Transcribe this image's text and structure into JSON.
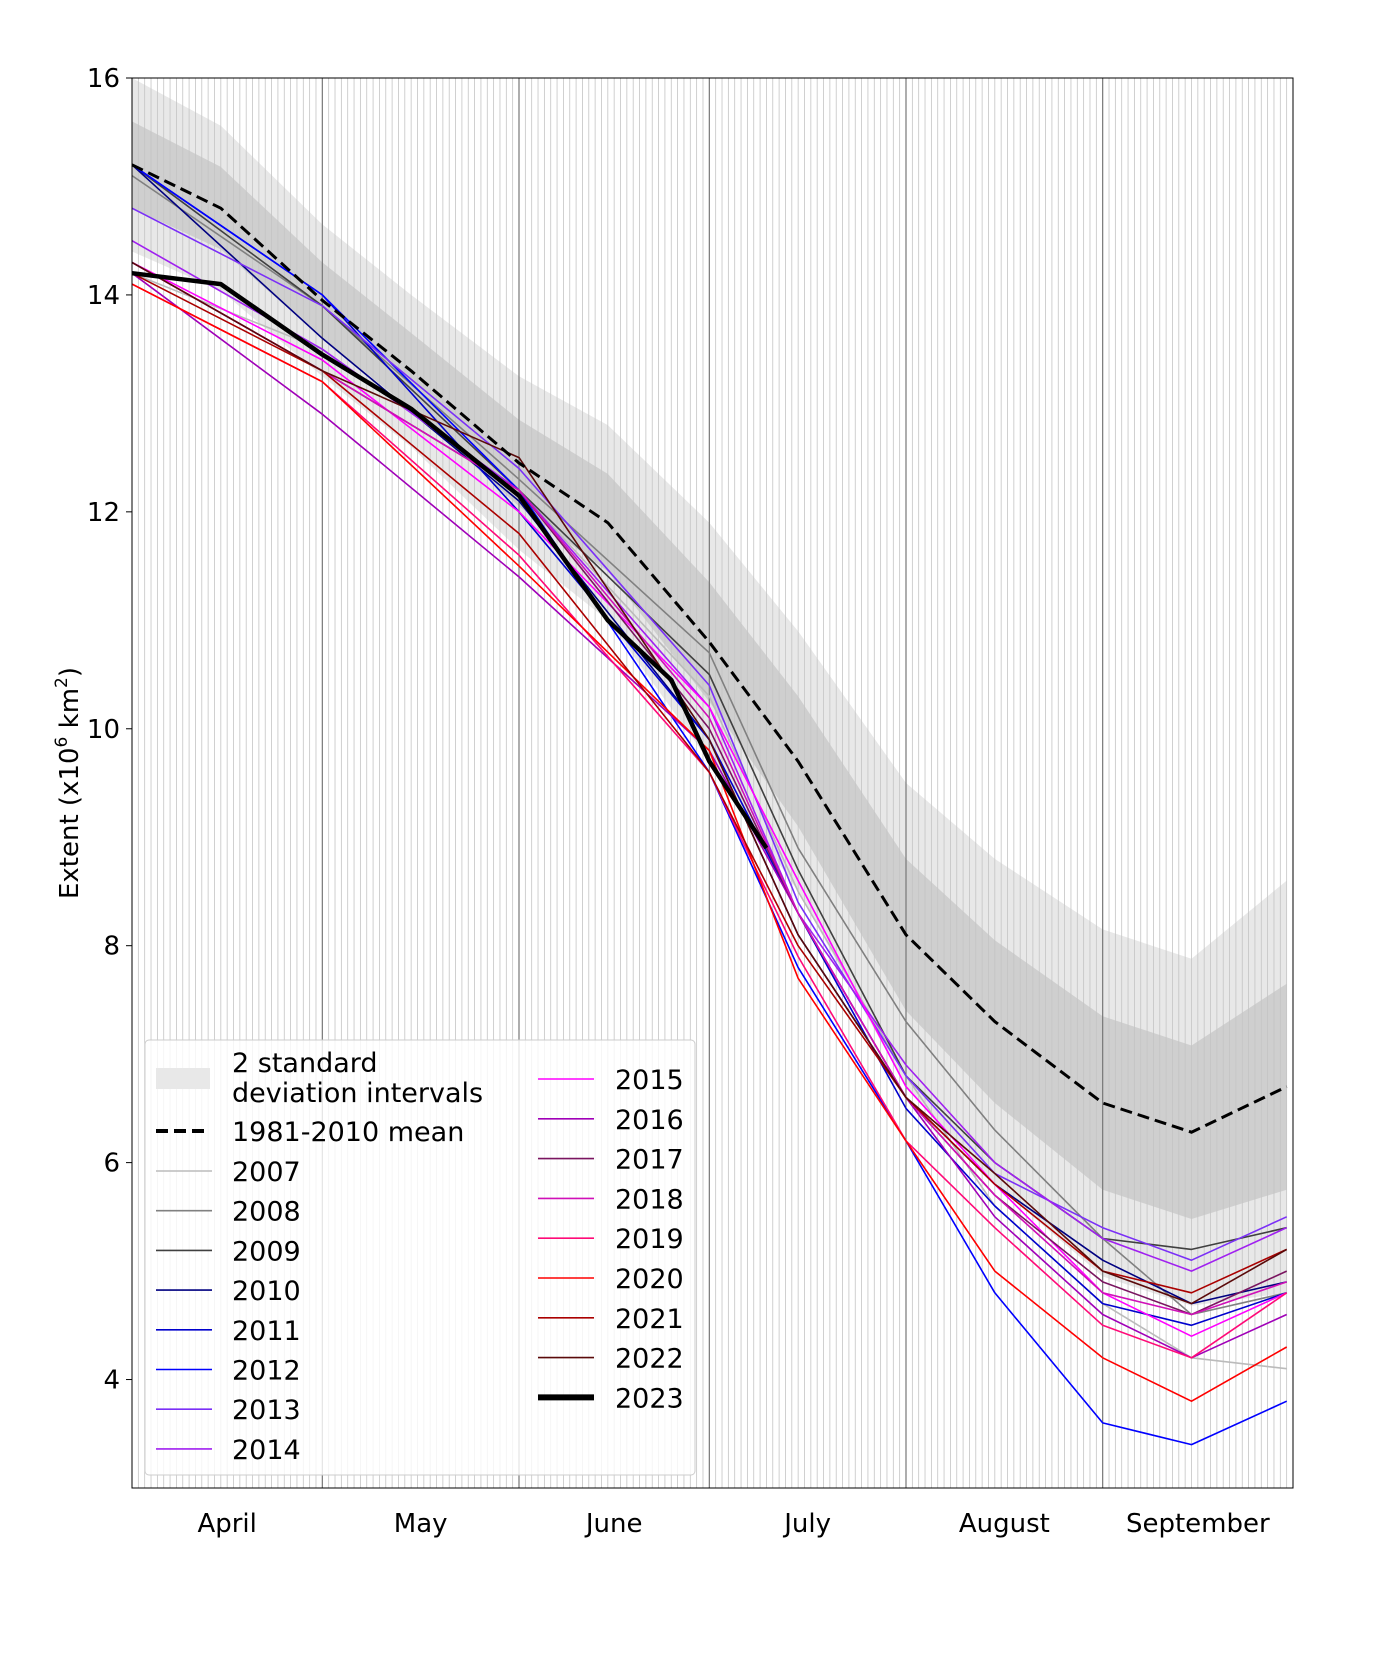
{
  "chart_data": {
    "type": "line",
    "title": "",
    "xlabel": "",
    "ylabel": "Extent (x10",
    "ylabel_sup": "6",
    "ylabel_unit": " km",
    "ylabel_unit_sup": "2",
    "ylabel_close": ")",
    "ylim": [
      3,
      16
    ],
    "xlim": [
      "04-01",
      "09-30"
    ],
    "yticks": [
      "4",
      "6",
      "8",
      "10",
      "12",
      "14",
      "16"
    ],
    "month_labels": [
      "April",
      "May",
      "June",
      "July",
      "August",
      "September"
    ],
    "grid": "daily vertical lines",
    "legend_placement": "lower-left",
    "legend": {
      "band_label_line1": "2 standard",
      "band_label_line2": "deviation intervals",
      "mean_label": "1981-2010 mean"
    },
    "band_colors": {
      "outer": "#e8e8e8",
      "inner": "#cfcfcf"
    },
    "mean": {
      "name": "1981-2010 mean",
      "color": "#000000",
      "x": [
        "04-01",
        "04-15",
        "05-01",
        "05-15",
        "06-01",
        "06-15",
        "07-01",
        "07-15",
        "08-01",
        "08-15",
        "09-01",
        "09-15",
        "09-30"
      ],
      "values": [
        15.2,
        14.8,
        13.95,
        13.3,
        12.45,
        11.9,
        10.8,
        9.7,
        8.1,
        7.3,
        6.55,
        6.28,
        6.7
      ],
      "sd": [
        0.4,
        0.38,
        0.35,
        0.35,
        0.4,
        0.45,
        0.55,
        0.6,
        0.7,
        0.75,
        0.8,
        0.8,
        0.95
      ]
    },
    "x_years": [
      "04-01",
      "05-01",
      "06-01",
      "07-01",
      "07-15",
      "08-01",
      "08-15",
      "09-01",
      "09-15",
      "09-30"
    ],
    "series": [
      {
        "name": "2007",
        "color": "#bbbbbb",
        "values": [
          14.2,
          13.5,
          12.2,
          10.3,
          8.5,
          6.8,
          5.6,
          4.7,
          4.2,
          4.1
        ]
      },
      {
        "name": "2008",
        "color": "#808080",
        "values": [
          15.1,
          13.9,
          12.3,
          10.7,
          8.9,
          7.3,
          6.3,
          5.3,
          4.6,
          4.8
        ]
      },
      {
        "name": "2009",
        "color": "#404040",
        "values": [
          15.2,
          13.9,
          12.2,
          10.5,
          8.7,
          6.8,
          6.0,
          5.3,
          5.2,
          5.4
        ]
      },
      {
        "name": "2010",
        "color": "#000080",
        "values": [
          15.2,
          13.6,
          12.1,
          9.9,
          8.1,
          6.6,
          5.8,
          5.1,
          4.7,
          4.9
        ]
      },
      {
        "name": "2011",
        "color": "#0000cd",
        "values": [
          15.2,
          14.0,
          12.0,
          9.9,
          8.3,
          6.5,
          5.6,
          4.7,
          4.5,
          4.8
        ]
      },
      {
        "name": "2012",
        "color": "#0000ff",
        "values": [
          15.2,
          14.0,
          12.2,
          9.6,
          7.8,
          6.2,
          4.8,
          3.6,
          3.4,
          3.8
        ]
      },
      {
        "name": "2013",
        "color": "#7b2ff7",
        "values": [
          14.8,
          13.9,
          12.4,
          10.4,
          8.4,
          6.8,
          5.9,
          5.4,
          5.1,
          5.5
        ]
      },
      {
        "name": "2014",
        "color": "#a020f0",
        "values": [
          14.5,
          13.5,
          12.2,
          10.2,
          8.3,
          6.9,
          6.0,
          5.3,
          5.0,
          5.4
        ]
      },
      {
        "name": "2015",
        "color": "#ff00ff",
        "values": [
          14.3,
          13.4,
          12.0,
          10.2,
          8.6,
          6.7,
          5.8,
          4.8,
          4.4,
          4.8
        ]
      },
      {
        "name": "2016",
        "color": "#a000b8",
        "values": [
          14.2,
          12.9,
          11.4,
          9.8,
          8.3,
          6.6,
          5.5,
          4.6,
          4.2,
          4.6
        ]
      },
      {
        "name": "2017",
        "color": "#7a1560",
        "values": [
          14.3,
          13.3,
          12.2,
          10.0,
          8.3,
          6.6,
          5.7,
          4.9,
          4.6,
          5.0
        ]
      },
      {
        "name": "2018",
        "color": "#d010b8",
        "values": [
          14.3,
          13.3,
          12.2,
          10.1,
          8.3,
          6.6,
          5.7,
          4.8,
          4.6,
          4.9
        ]
      },
      {
        "name": "2019",
        "color": "#ff0a78",
        "values": [
          14.1,
          13.2,
          11.6,
          9.6,
          7.9,
          6.2,
          5.4,
          4.5,
          4.2,
          4.8
        ]
      },
      {
        "name": "2020",
        "color": "#ff0000",
        "values": [
          14.1,
          13.2,
          11.5,
          9.8,
          7.7,
          6.2,
          5.0,
          4.2,
          3.8,
          4.3
        ]
      },
      {
        "name": "2021",
        "color": "#aa0000",
        "values": [
          14.2,
          13.3,
          11.8,
          9.6,
          8.0,
          6.6,
          5.8,
          5.0,
          4.8,
          5.2
        ]
      },
      {
        "name": "2022",
        "color": "#5a0a0a",
        "values": [
          14.3,
          13.3,
          12.5,
          9.9,
          8.1,
          6.6,
          5.9,
          5.0,
          4.7,
          5.2
        ]
      }
    ],
    "current": {
      "name": "2023",
      "color": "#000000",
      "x": [
        "04-01",
        "04-15",
        "05-01",
        "05-15",
        "06-01",
        "06-15",
        "06-25",
        "07-01",
        "07-10"
      ],
      "values": [
        14.2,
        14.1,
        13.45,
        12.95,
        12.15,
        11.0,
        10.45,
        9.7,
        8.9
      ]
    }
  }
}
